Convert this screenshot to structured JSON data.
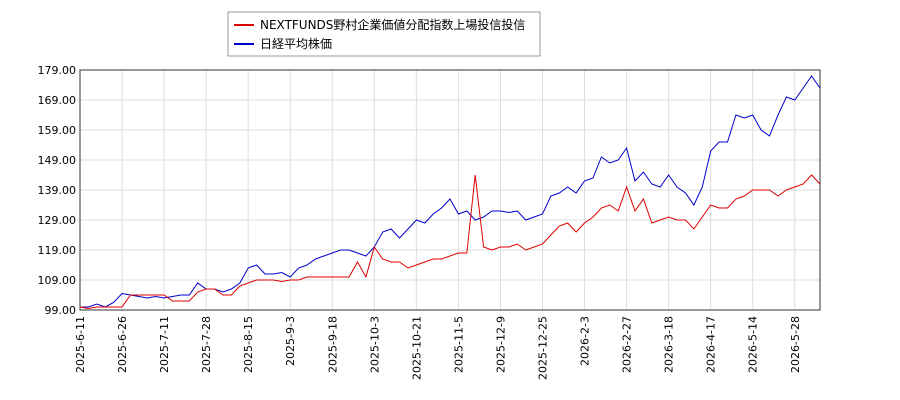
{
  "chart_data": {
    "type": "line",
    "categories": [
      "2025-6-11",
      null,
      null,
      null,
      null,
      "2025-6-26",
      null,
      null,
      null,
      null,
      "2025-7-11",
      null,
      null,
      null,
      null,
      "2025-7-28",
      null,
      null,
      null,
      null,
      "2025-8-15",
      null,
      null,
      null,
      null,
      "2025-9-3",
      null,
      null,
      null,
      null,
      "2025-9-18",
      null,
      null,
      null,
      null,
      "2025-10-3",
      null,
      null,
      null,
      null,
      "2025-10-21",
      null,
      null,
      null,
      null,
      "2025-11-5",
      null,
      null,
      null,
      null,
      "2025-12-9",
      null,
      null,
      null,
      null,
      "2025-12-25",
      null,
      null,
      null,
      null,
      "2026-2-3",
      null,
      null,
      null,
      null,
      "2026-2-27",
      null,
      null,
      null,
      null,
      "2026-3-18",
      null,
      null,
      null,
      null,
      "2026-4-17",
      null,
      null,
      null,
      null,
      "2026-5-14",
      null,
      null,
      null,
      null,
      "2026-5-28",
      null,
      null,
      null
    ],
    "series": [
      {
        "name": "NEXTFUNDS野村企業価値分配指数上場投信投信",
        "color": "#dd0000",
        "values": [
          100,
          99.5,
          100,
          100,
          100,
          100,
          104,
          104,
          104,
          104,
          104,
          102,
          102,
          102,
          105,
          106,
          106,
          104,
          104,
          107,
          108,
          109,
          109,
          109,
          108.5,
          109,
          109,
          110,
          110,
          110,
          110,
          110,
          110,
          115,
          110,
          120,
          116,
          115,
          115,
          113,
          114,
          115,
          116,
          116,
          117,
          118,
          118,
          144,
          120,
          119,
          120,
          120,
          121,
          119,
          120,
          121,
          124,
          127,
          128,
          125,
          128,
          130,
          133,
          134,
          132,
          140,
          132,
          136,
          128,
          129,
          130,
          129,
          129,
          126,
          130,
          134,
          133,
          133,
          136,
          137,
          139,
          139,
          139,
          137,
          139,
          140,
          141,
          144,
          141
        ]
      },
      {
        "name": "日経平均株価",
        "color": "#0000cc",
        "values": [
          100,
          100,
          101,
          100,
          101.5,
          104.5,
          104,
          103.5,
          103,
          103.5,
          103,
          103.5,
          104,
          104,
          108,
          106,
          106,
          105,
          106,
          108,
          113,
          114,
          111,
          111,
          111.5,
          110,
          113,
          114,
          116,
          117,
          118,
          119,
          119,
          118,
          117,
          120,
          125,
          126,
          123,
          126,
          129,
          128,
          131,
          133,
          136,
          131,
          132,
          129,
          130,
          132,
          132,
          131.5,
          132,
          129,
          130,
          131,
          137,
          138,
          140,
          138,
          142,
          143,
          150,
          148,
          149,
          153,
          142,
          145,
          141,
          140,
          144,
          140,
          138,
          134,
          140,
          152,
          155,
          155,
          164,
          163,
          164,
          159,
          157,
          164,
          170,
          169,
          173,
          177,
          173
        ]
      }
    ],
    "ylim": [
      99,
      179
    ],
    "yticks": [
      {
        "value": 99,
        "label": "99.00"
      },
      {
        "value": 109,
        "label": "109.00"
      },
      {
        "value": 119,
        "label": "119.00"
      },
      {
        "value": 129,
        "label": "129.00"
      },
      {
        "value": 139,
        "label": "139.00"
      },
      {
        "value": 149,
        "label": "149.00"
      },
      {
        "value": 159,
        "label": "159.00"
      },
      {
        "value": 169,
        "label": "169.00"
      },
      {
        "value": 179,
        "label": "179.00"
      }
    ],
    "grid": true
  }
}
